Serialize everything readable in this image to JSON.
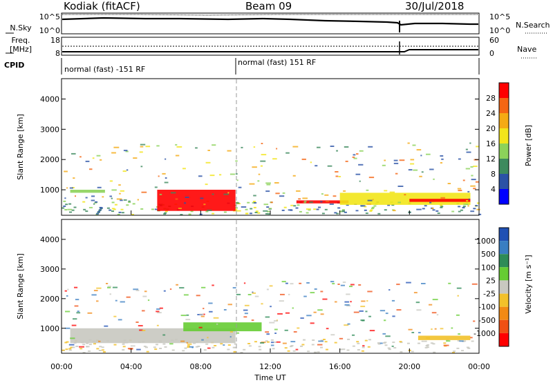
{
  "header": {
    "station": "Kodiak (fitACF)",
    "beam": "Beam 09",
    "date": "30/Jul/2018"
  },
  "strip": {
    "nsky_label": "N.Sky",
    "nsky_ticks": [
      "10^5",
      "10^0"
    ],
    "nsearch_label": "N.Search",
    "nsearch_ticks": [
      "10^5",
      "10^0"
    ],
    "freq_label": "Freq.",
    "freq_unit": "[MHz]",
    "freq_ticks": [
      "18",
      "8"
    ],
    "nave_label": "Nave",
    "nave_ticks": [
      "60",
      "0"
    ],
    "cpid_label": "CPID",
    "cpid_segments": [
      "normal (fast) -151 RF",
      "normal (fast) 151 RF"
    ]
  },
  "chart_data": [
    {
      "type": "heatmap",
      "panel": "power",
      "ylabel": "Slant Range [km]",
      "yticks": [
        1000,
        2000,
        3000,
        4000
      ],
      "ylim": [
        180,
        4650
      ],
      "colorbar_label": "Power [dB]",
      "colorbar_ticks": [
        "4",
        "8",
        "12",
        "16",
        "20",
        "24",
        "28"
      ],
      "colors": [
        "#0000ff",
        "#2b52a6",
        "#3d8a5e",
        "#8cd25a",
        "#f2e51a",
        "#f5aa14",
        "#f56614",
        "#ff0000"
      ],
      "bands": [
        {
          "start": "00:30",
          "end": "02:30",
          "range_km": [
            900,
            1000
          ],
          "value": 12
        },
        {
          "start": "05:30",
          "end": "10:00",
          "range_km": [
            300,
            1000
          ],
          "value": 28
        },
        {
          "start": "13:30",
          "end": "16:30",
          "range_km": [
            550,
            650
          ],
          "value": 28
        },
        {
          "start": "16:00",
          "end": "23:30",
          "range_km": [
            500,
            900
          ],
          "value": 16
        },
        {
          "start": "20:00",
          "end": "23:30",
          "range_km": [
            600,
            700
          ],
          "value": 28
        }
      ]
    },
    {
      "type": "heatmap",
      "panel": "velocity",
      "xlabel": "Time UT",
      "xticks": [
        "00:00",
        "04:00",
        "08:00",
        "12:00",
        "16:00",
        "20:00",
        "00:00"
      ],
      "ylabel": "Slant Range [km]",
      "yticks": [
        1000,
        2000,
        3000,
        4000
      ],
      "ylim": [
        180,
        4650
      ],
      "colorbar_label": "Velocity [m s⁻¹]",
      "colorbar_ticks": [
        "1000",
        "500",
        "100",
        "25",
        "-25",
        "-100",
        "-500",
        "-1000"
      ],
      "colors": [
        "#2050b4",
        "#3a7ec2",
        "#2e8b57",
        "#66cc33",
        "#c8c8c0",
        "#f2c12a",
        "#f28a14",
        "#f05014",
        "#ff0000"
      ],
      "bands": [
        {
          "start": "00:30",
          "end": "10:00",
          "range_km": [
            500,
            1000
          ],
          "value": 0
        },
        {
          "start": "07:00",
          "end": "11:30",
          "range_km": [
            900,
            1200
          ],
          "value": 100
        },
        {
          "start": "20:30",
          "end": "23:30",
          "range_km": [
            600,
            750
          ],
          "value": -100
        }
      ]
    }
  ]
}
